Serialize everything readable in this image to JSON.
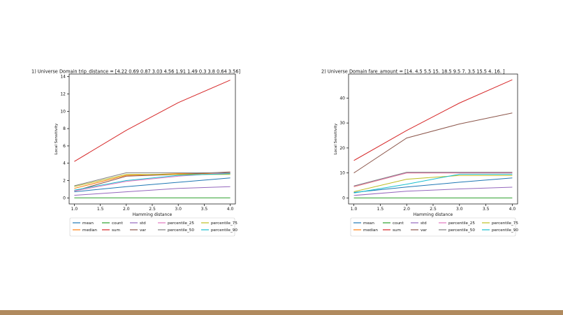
{
  "slide": {
    "footer_color": "#b08a5e"
  },
  "chart_data": [
    {
      "type": "line",
      "title": "1) Universe Domain trip_distance = [4.22 0.69 0.87 3.03 4.56 1.91 1.49 0.3  3.8  0.64 3.56]",
      "xlabel": "Hamming distance",
      "ylabel": "Local Sensitivity",
      "x": [
        1.0,
        2.0,
        3.0,
        4.0
      ],
      "xlim": [
        0.9,
        4.1
      ],
      "ylim": [
        -0.7,
        14.3
      ],
      "xticks": [
        1.0,
        1.5,
        2.0,
        2.5,
        3.0,
        3.5,
        4.0
      ],
      "xtick_labels": [
        "1.0",
        "1.5",
        "2.0",
        "2.5",
        "3.0",
        "3.5",
        "4.0"
      ],
      "yticks": [
        0,
        2,
        4,
        6,
        8,
        10,
        12,
        14
      ],
      "ytick_labels": [
        "0",
        "2",
        "4",
        "6",
        "8",
        "10",
        "12",
        "14"
      ],
      "grid": false,
      "legend_placement": "below",
      "series": [
        {
          "name": "mean",
          "color": "#1f77b4",
          "values": [
            0.7,
            1.3,
            1.8,
            2.3
          ]
        },
        {
          "name": "median",
          "color": "#ff7f0e",
          "values": [
            1.1,
            2.6,
            2.8,
            2.8
          ]
        },
        {
          "name": "count",
          "color": "#2ca02c",
          "values": [
            0.0,
            0.0,
            0.0,
            0.0
          ]
        },
        {
          "name": "sum",
          "color": "#d62728",
          "values": [
            4.2,
            7.8,
            11.0,
            13.6
          ]
        },
        {
          "name": "std",
          "color": "#9467bd",
          "values": [
            0.3,
            0.7,
            1.1,
            1.3
          ]
        },
        {
          "name": "var",
          "color": "#8c564b",
          "values": [
            0.8,
            2.5,
            2.7,
            3.0
          ]
        },
        {
          "name": "percentile_25",
          "color": "#e377c2",
          "values": [
            0.8,
            1.9,
            2.5,
            2.9
          ]
        },
        {
          "name": "percentile_50",
          "color": "#7f7f7f",
          "values": [
            1.4,
            2.9,
            2.9,
            2.9
          ]
        },
        {
          "name": "percentile_75",
          "color": "#bcbd22",
          "values": [
            1.3,
            2.7,
            2.7,
            2.7
          ]
        },
        {
          "name": "percentile_90",
          "color": "#17becf",
          "values": [
            0.9,
            2.0,
            2.6,
            2.8
          ]
        }
      ]
    },
    {
      "type": "line",
      "title": "2) Universe Domain fare_amount = [14.   4.5  5.5 15.  18.5  9.5  7.   3.5 15.5  4.  16. ]",
      "xlabel": "Hamming distance",
      "ylabel": "Local Sensitivity",
      "x": [
        1.0,
        2.0,
        3.0,
        4.0
      ],
      "xlim": [
        0.9,
        4.1
      ],
      "ylim": [
        -2.4,
        49.6
      ],
      "xticks": [
        1.0,
        1.5,
        2.0,
        2.5,
        3.0,
        3.5,
        4.0
      ],
      "xtick_labels": [
        "1.0",
        "1.5",
        "2.0",
        "2.5",
        "3.0",
        "3.5",
        "4.0"
      ],
      "yticks": [
        0,
        10,
        20,
        30,
        40
      ],
      "ytick_labels": [
        "0",
        "10",
        "20",
        "30",
        "40"
      ],
      "grid": false,
      "legend_placement": "below",
      "series": [
        {
          "name": "mean",
          "color": "#1f77b4",
          "values": [
            2.2,
            4.4,
            6.3,
            8.0
          ]
        },
        {
          "name": "median",
          "color": "#ff7f0e",
          "values": [
            4.5,
            10.0,
            10.0,
            10.0
          ]
        },
        {
          "name": "count",
          "color": "#2ca02c",
          "values": [
            0.0,
            0.0,
            0.0,
            0.0
          ]
        },
        {
          "name": "sum",
          "color": "#d62728",
          "values": [
            15.0,
            27.0,
            38.0,
            47.3
          ]
        },
        {
          "name": "std",
          "color": "#9467bd",
          "values": [
            1.0,
            2.7,
            3.6,
            4.3
          ]
        },
        {
          "name": "var",
          "color": "#8c564b",
          "values": [
            10.0,
            24.0,
            29.6,
            34.0
          ]
        },
        {
          "name": "percentile_25",
          "color": "#e377c2",
          "values": [
            4.6,
            10.0,
            10.0,
            10.0
          ]
        },
        {
          "name": "percentile_50",
          "color": "#7f7f7f",
          "values": [
            4.8,
            10.3,
            10.3,
            10.3
          ]
        },
        {
          "name": "percentile_75",
          "color": "#bcbd22",
          "values": [
            2.5,
            7.5,
            9.0,
            9.0
          ]
        },
        {
          "name": "percentile_90",
          "color": "#17becf",
          "values": [
            2.0,
            5.5,
            9.5,
            9.5
          ]
        }
      ]
    }
  ]
}
